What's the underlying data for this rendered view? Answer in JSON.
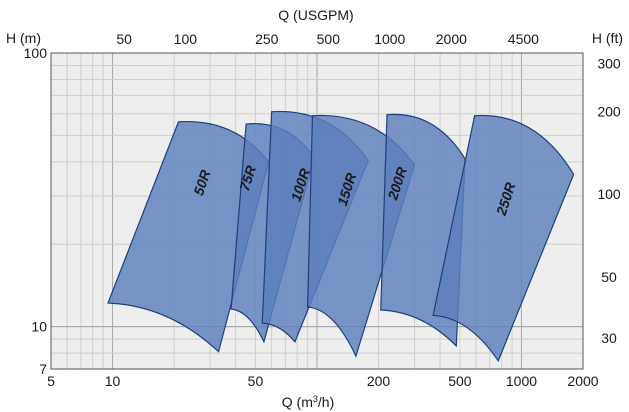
{
  "chart_data": {
    "type": "area",
    "x_axis": {
      "label": "Q (m",
      "label_sup": "3",
      "label_end": "/h)",
      "scale": "log",
      "range": [
        5,
        2000
      ],
      "tick_labels": [
        "5",
        "10",
        "50",
        "200",
        "500",
        "1000",
        "2000"
      ],
      "tick_values": [
        5,
        10,
        50,
        200,
        500,
        1000,
        2000
      ]
    },
    "x2_axis": {
      "label": "Q (USGPM)",
      "tick_labels": [
        "50",
        "100",
        "250",
        "500",
        "1000",
        "2000",
        "4500"
      ],
      "tick_positions_m3h": [
        11.4,
        22.7,
        56.8,
        113.6,
        227,
        454,
        1022
      ]
    },
    "y_axis": {
      "label": "H (m)",
      "scale": "log",
      "range": [
        7,
        100
      ],
      "tick_labels": [
        "7",
        "10",
        "100"
      ],
      "tick_values": [
        7,
        10,
        100
      ]
    },
    "y2_axis": {
      "label": "H (ft)",
      "tick_labels": [
        "300",
        "200",
        "100",
        "50",
        "30"
      ],
      "tick_positions_m": [
        91.4,
        61,
        30.5,
        15.2,
        9.1
      ]
    },
    "grid": true,
    "fill_color": "#5b7fbd",
    "edge_color": "#1f3f7a",
    "background": "#eeeeee",
    "series": [
      {
        "name": "50R",
        "ll": [
          9.5,
          12.2
        ],
        "ul": [
          21,
          56
        ],
        "ur": [
          58,
          40
        ],
        "lr": [
          33,
          8.1
        ]
      },
      {
        "name": "75R",
        "ll": [
          38,
          11.6
        ],
        "ul": [
          45,
          55
        ],
        "ur": [
          97,
          41.5
        ],
        "lr": [
          55,
          8.8
        ]
      },
      {
        "name": "100R",
        "ll": [
          54,
          10.3
        ],
        "ul": [
          60,
          61
        ],
        "ur": [
          178,
          40.5
        ],
        "lr": [
          78,
          8.8
        ]
      },
      {
        "name": "150R",
        "ll": [
          90,
          11.8
        ],
        "ul": [
          95,
          59
        ],
        "ur": [
          300,
          39
        ],
        "lr": [
          155,
          7.8
        ]
      },
      {
        "name": "200R",
        "ll": [
          205,
          11.5
        ],
        "ul": [
          220,
          59.5
        ],
        "ur": [
          530,
          41
        ],
        "lr": [
          480,
          8.5
        ]
      },
      {
        "name": "250R",
        "ll": [
          370,
          11
        ],
        "ul": [
          590,
          59
        ],
        "ur": [
          1800,
          36
        ],
        "lr": [
          770,
          7.5
        ]
      }
    ]
  }
}
